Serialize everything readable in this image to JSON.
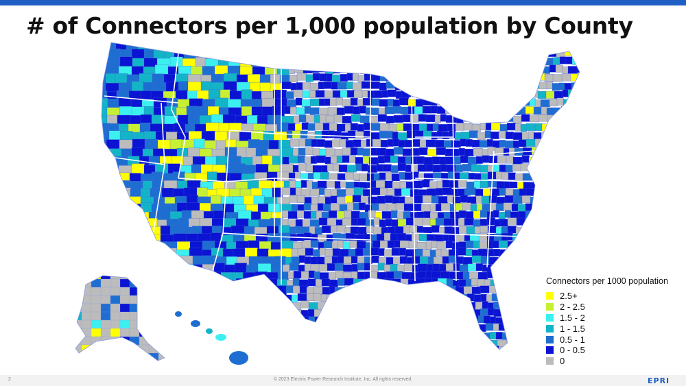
{
  "title": "# of Connectors per 1,000 population by County",
  "legend": {
    "title": "Connectors per 1000 population",
    "items": [
      {
        "label": "2.5+",
        "color": "#ffff00"
      },
      {
        "label": "2 - 2.5",
        "color": "#c8f032"
      },
      {
        "label": "1.5 - 2",
        "color": "#3cf0f0"
      },
      {
        "label": "1 - 1.5",
        "color": "#14b4c8"
      },
      {
        "label": "0.5 - 1",
        "color": "#1e6ed2"
      },
      {
        "label": "0 - 0.5",
        "color": "#0a14d2"
      },
      {
        "label": "0",
        "color": "#bcbcbc"
      }
    ]
  },
  "footer": {
    "page_number": "2",
    "copyright": "© 2023 Electric Power Research Institute, Inc. All rights reserved.",
    "logo_text": "EPRI"
  },
  "colors": {
    "brand_blue": "#1f5fc4",
    "border": "#ffffff"
  }
}
